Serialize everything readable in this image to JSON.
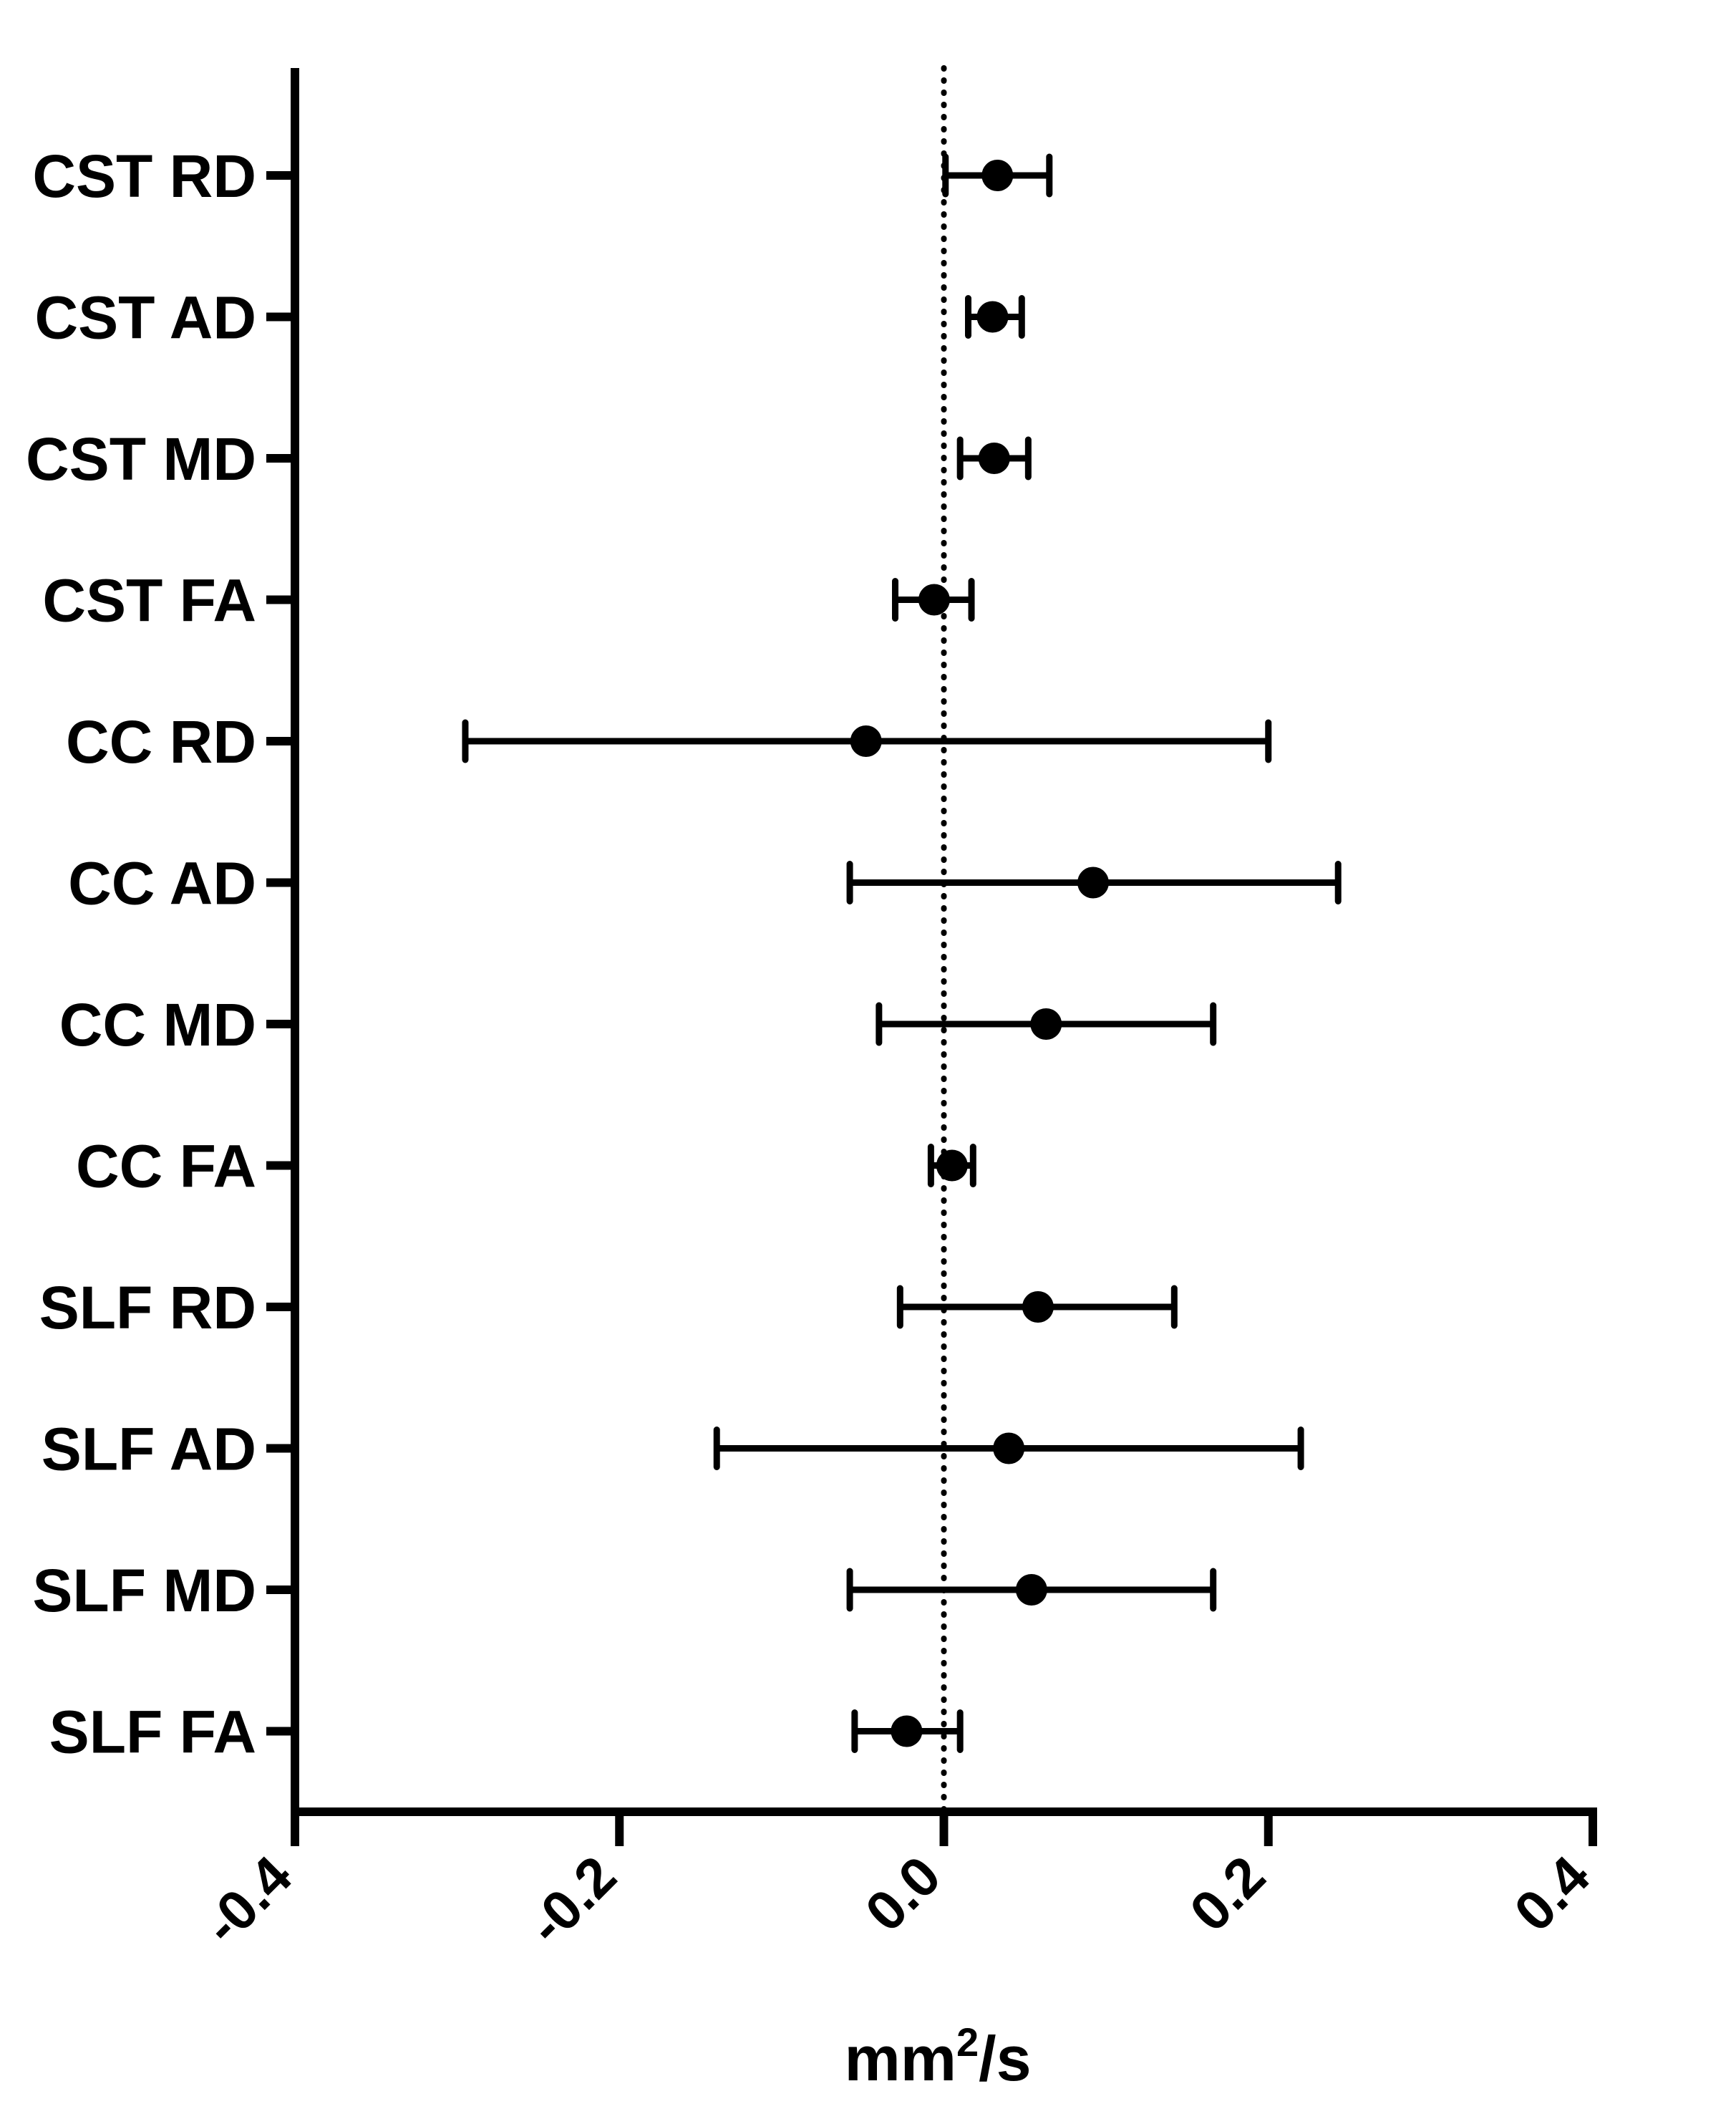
{
  "chart_data": {
    "type": "scatter",
    "subtype": "forest-plot",
    "categories": [
      "CST RD",
      "CST AD",
      "CST MD",
      "CST FA",
      "CC RD",
      "CC AD",
      "CC MD",
      "CC FA",
      "SLF RD",
      "SLF AD",
      "SLF MD",
      "SLF FA"
    ],
    "points": [
      {
        "label": "CST RD",
        "mean": 0.033,
        "low": 0.001,
        "high": 0.065
      },
      {
        "label": "CST AD",
        "mean": 0.03,
        "low": 0.015,
        "high": 0.048
      },
      {
        "label": "CST MD",
        "mean": 0.031,
        "low": 0.01,
        "high": 0.052
      },
      {
        "label": "CST FA",
        "mean": -0.006,
        "low": -0.03,
        "high": 0.017
      },
      {
        "label": "CC RD",
        "mean": -0.048,
        "low": -0.295,
        "high": 0.2
      },
      {
        "label": "CC AD",
        "mean": 0.092,
        "low": -0.058,
        "high": 0.243
      },
      {
        "label": "CC MD",
        "mean": 0.063,
        "low": -0.04,
        "high": 0.166
      },
      {
        "label": "CC FA",
        "mean": 0.005,
        "low": -0.008,
        "high": 0.018
      },
      {
        "label": "SLF RD",
        "mean": 0.058,
        "low": -0.027,
        "high": 0.142
      },
      {
        "label": "SLF AD",
        "mean": 0.04,
        "low": -0.14,
        "high": 0.22
      },
      {
        "label": "SLF MD",
        "mean": 0.054,
        "low": -0.058,
        "high": 0.166
      },
      {
        "label": "SLF FA",
        "mean": -0.023,
        "low": -0.055,
        "high": 0.01
      }
    ],
    "xticks": [
      "-0.4",
      "-0.2",
      "0.0",
      "0.2",
      "0.4"
    ],
    "xlim": [
      -0.4,
      0.4
    ],
    "reference_line": 0.0,
    "xlabel_main": "mm",
    "xlabel_sup": "2",
    "xlabel_tail": "/s",
    "ylabel": "",
    "grid": false,
    "legend": "none",
    "colors": {
      "marks": "#000000",
      "background": "#ffffff"
    }
  }
}
